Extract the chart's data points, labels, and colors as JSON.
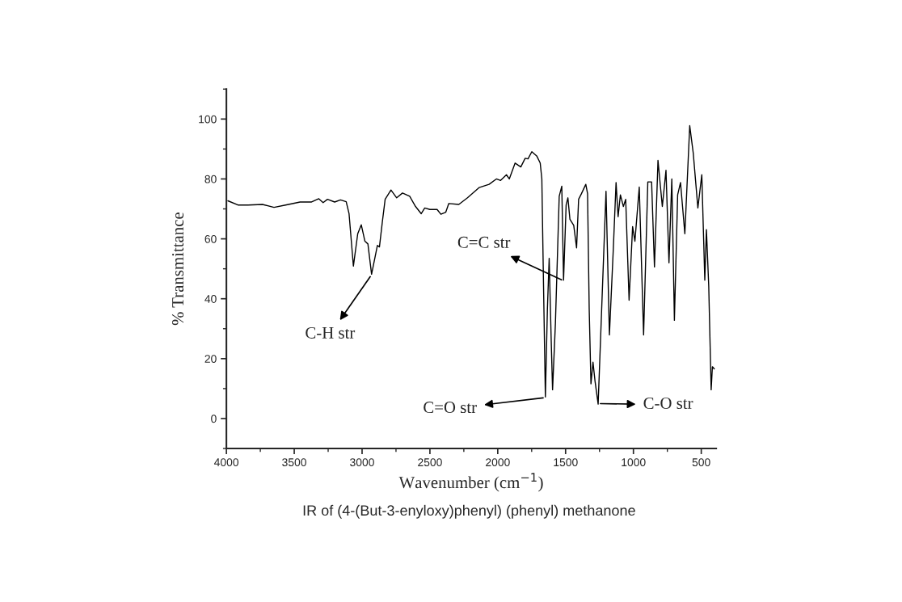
{
  "chart_data": {
    "type": "line",
    "title": "IR of (4-(But-3-enyloxy)phenyl) (phenyl) methanone",
    "xlabel": "Wavenumber (cm$^{−1}$)",
    "ylabel": "% Transmittance",
    "xlim": [
      4000,
      390
    ],
    "ylim": [
      -10,
      110
    ],
    "xticks": [
      4000,
      {
        "value": 3750,
        "label": null
      },
      3500,
      {
        "value": 3250,
        "label": null
      },
      3000,
      {
        "value": 2750,
        "label": null
      },
      2500,
      {
        "value": 2250,
        "label": null
      },
      2000,
      {
        "value": 1750,
        "label": null
      },
      1500,
      {
        "value": 1250,
        "label": null
      },
      1000,
      {
        "value": 750,
        "label": null
      },
      500
    ],
    "yticks": [
      {
        "value": -10,
        "label": null
      },
      0,
      {
        "value": 10,
        "label": null
      },
      20,
      {
        "value": 30,
        "label": null
      },
      40,
      {
        "value": 50,
        "label": null
      },
      60,
      {
        "value": 70,
        "label": null
      },
      80,
      {
        "value": 90,
        "label": null
      },
      100,
      {
        "value": 110,
        "label": null
      }
    ],
    "grid": false,
    "legend": false,
    "marker": "none",
    "line_style": "solid",
    "annotations": [
      {
        "text": "C-H str",
        "x": 2930,
        "y": 48
      },
      {
        "text": "C=C str",
        "x": 1515,
        "y": 46
      },
      {
        "text": "C=O str",
        "x": 1649,
        "y": 7
      },
      {
        "text": "C-O str",
        "x": 1260,
        "y": 5
      }
    ],
    "series": [
      {
        "color": "#000000",
        "x": [
          3989,
          3915,
          3840,
          3734,
          3649,
          3564,
          3457,
          3372,
          3319,
          3287,
          3255,
          3202,
          3159,
          3117,
          3096,
          3064,
          3032,
          3006,
          2979,
          2957,
          2930,
          2904,
          2887,
          2872,
          2851,
          2830,
          2787,
          2745,
          2702,
          2649,
          2606,
          2564,
          2538,
          2500,
          2447,
          2419,
          2383,
          2361,
          2287,
          2223,
          2138,
          2064,
          2010,
          1979,
          1936,
          1915,
          1872,
          1830,
          1798,
          1777,
          1749,
          1713,
          1687,
          1675,
          1666,
          1649,
          1634,
          1621,
          1606,
          1596,
          1575,
          1547,
          1528,
          1515,
          1496,
          1483,
          1468,
          1440,
          1419,
          1404,
          1383,
          1351,
          1338,
          1326,
          1313,
          1298,
          1283,
          1260,
          1234,
          1202,
          1177,
          1149,
          1128,
          1113,
          1096,
          1074,
          1057,
          1032,
          1006,
          989,
          957,
          925,
          894,
          866,
          845,
          819,
          787,
          760,
          738,
          717,
          698,
          674,
          653,
          621,
          585,
          559,
          525,
          496,
          474,
          462,
          445,
          427,
          418,
          404
        ],
        "values": [
          72.7,
          71.3,
          71.3,
          71.5,
          70.5,
          71.3,
          72.3,
          72.3,
          73.4,
          72.1,
          73.2,
          72.3,
          73,
          72.4,
          68.4,
          50.9,
          61.7,
          64.7,
          59.2,
          58.3,
          48.2,
          54,
          57.8,
          57.3,
          65.5,
          73.2,
          76.3,
          73.7,
          75.3,
          74.2,
          70.8,
          68.4,
          70.3,
          69.8,
          69.8,
          68.2,
          68.9,
          71.8,
          71.5,
          73.7,
          77.1,
          78.2,
          80,
          79.5,
          81.4,
          80,
          85.3,
          84,
          86.9,
          86.7,
          89.1,
          87.7,
          85.3,
          80,
          53.9,
          7.2,
          36.6,
          53.5,
          26,
          9.6,
          31.8,
          74.2,
          77.6,
          46.2,
          71.3,
          73.7,
          66.5,
          64.5,
          57,
          73.2,
          75.1,
          78.2,
          75.1,
          36.6,
          11.6,
          18.8,
          12.5,
          4.8,
          36.6,
          75.9,
          27.9,
          55.9,
          78.8,
          67.4,
          74.7,
          70.8,
          73.2,
          39.5,
          64.1,
          59.2,
          77.3,
          27.9,
          79,
          79,
          50.6,
          86.2,
          70.8,
          82.9,
          52,
          80,
          32.8,
          74.7,
          78.8,
          61.7,
          97.8,
          88.6,
          70.3,
          81.4,
          46.2,
          63.1,
          44.3,
          9.6,
          17.3,
          16.6
        ]
      }
    ]
  }
}
